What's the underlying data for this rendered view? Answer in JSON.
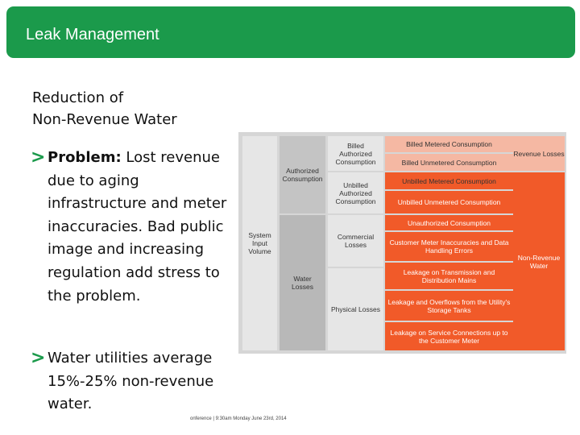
{
  "header": {
    "title": "Leak Management"
  },
  "subheading": {
    "line1": "Reduction of",
    "line2": "Non-Revenue Water"
  },
  "bullets": [
    {
      "marker": ">",
      "strong": "Problem:",
      "text": " Lost revenue due to aging infrastructure and meter inaccuracies. Bad public image and increasing regulation add stress to the problem."
    },
    {
      "marker": ">",
      "text": "Water utilities average 15%-25% non-revenue water."
    }
  ],
  "footer": {
    "text": "onference | 9:30am Monday June 23rd, 2014"
  },
  "water_balance": {
    "system_input_volume": "System Input Volume",
    "authorized_consumption": "Authorized Consumption",
    "water_losses": "Water Losses",
    "billed_authorized": "Billed Authorized Consumption",
    "unbilled_authorized": "Unbilled Authorized Consumption",
    "commercial_losses": "Commercial Losses",
    "physical_losses": "Physical Losses",
    "billed_metered": "Billed Metered Consumption",
    "billed_unmetered": "Billed Unmetered Consumption",
    "unbilled_metered": "Unbilled Metered Consumption",
    "unbilled_unmetered": "Unbilled Unmetered Consumption",
    "unauthorized": "Unauthorized Consumption",
    "meter_inaccuracies": "Customer Meter Inaccuracies and Data Handling Errors",
    "leakage_mains": "Leakage on Transmission and Distribution Mains",
    "leakage_tanks": "Leakage and Overflows from the Utility's Storage Tanks",
    "leakage_connections": "Leakage on Service Connections up to the Customer Meter",
    "revenue_losses": "Revenue Losses",
    "non_revenue_water": "Non-Revenue Water",
    "colors": {
      "grey_light": "#e6e6e6",
      "grey_mid": "#c4c4c4",
      "peach": "#f5b8a3",
      "orange": "#f15a29"
    }
  }
}
